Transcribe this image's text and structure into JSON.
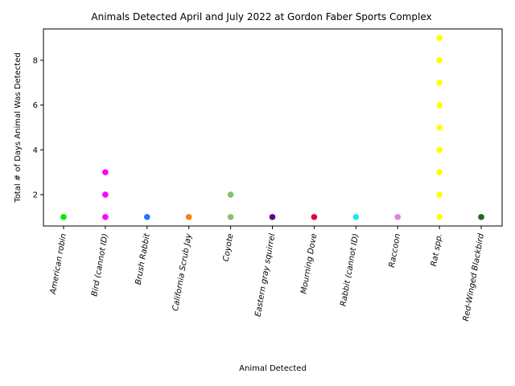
{
  "chart_data": {
    "type": "scatter",
    "title": "Animals Detected April and July 2022 at Gordon Faber Sports Complex",
    "xlabel": "Animal Detected",
    "ylabel": "Total # of Days Animal Was Detected",
    "categories": [
      "American robin",
      "Bird (cannot ID)",
      "Brush Rabbit",
      "California Scrub Jay",
      "Coyote",
      "Eastern gray squirrel",
      "Mourning Dove",
      "Rabbit (cannot ID)",
      "Raccoon",
      "Rat spp.",
      "Red-Winged Blackbird"
    ],
    "yticks": [
      2,
      4,
      6,
      8
    ],
    "ylim": [
      0.6,
      9.4
    ],
    "grid": false,
    "legend": "none",
    "series": [
      {
        "category": "American robin",
        "color": "#00ee00",
        "points": [
          1
        ]
      },
      {
        "category": "Bird (cannot ID)",
        "color": "#ff00ff",
        "points": [
          1,
          2,
          3
        ]
      },
      {
        "category": "Brush Rabbit",
        "color": "#1f77ff",
        "points": [
          1
        ]
      },
      {
        "category": "California Scrub Jay",
        "color": "#ff7f0e",
        "points": [
          1
        ]
      },
      {
        "category": "Coyote",
        "color": "#82c36e",
        "points": [
          1,
          2
        ]
      },
      {
        "category": "Eastern gray squirrel",
        "color": "#5a0a8c",
        "points": [
          1
        ]
      },
      {
        "category": "Mourning Dove",
        "color": "#e8003c",
        "points": [
          1
        ]
      },
      {
        "category": "Rabbit (cannot ID)",
        "color": "#1ee6f0",
        "points": [
          1
        ]
      },
      {
        "category": "Raccoon",
        "color": "#dc82dc",
        "points": [
          1
        ]
      },
      {
        "category": "Rat spp.",
        "color": "#ffff00",
        "points": [
          1,
          2,
          3,
          4,
          5,
          6,
          7,
          8,
          9
        ]
      },
      {
        "category": "Red-Winged Blackbird",
        "color": "#1a6b1a",
        "points": [
          1
        ]
      }
    ]
  }
}
